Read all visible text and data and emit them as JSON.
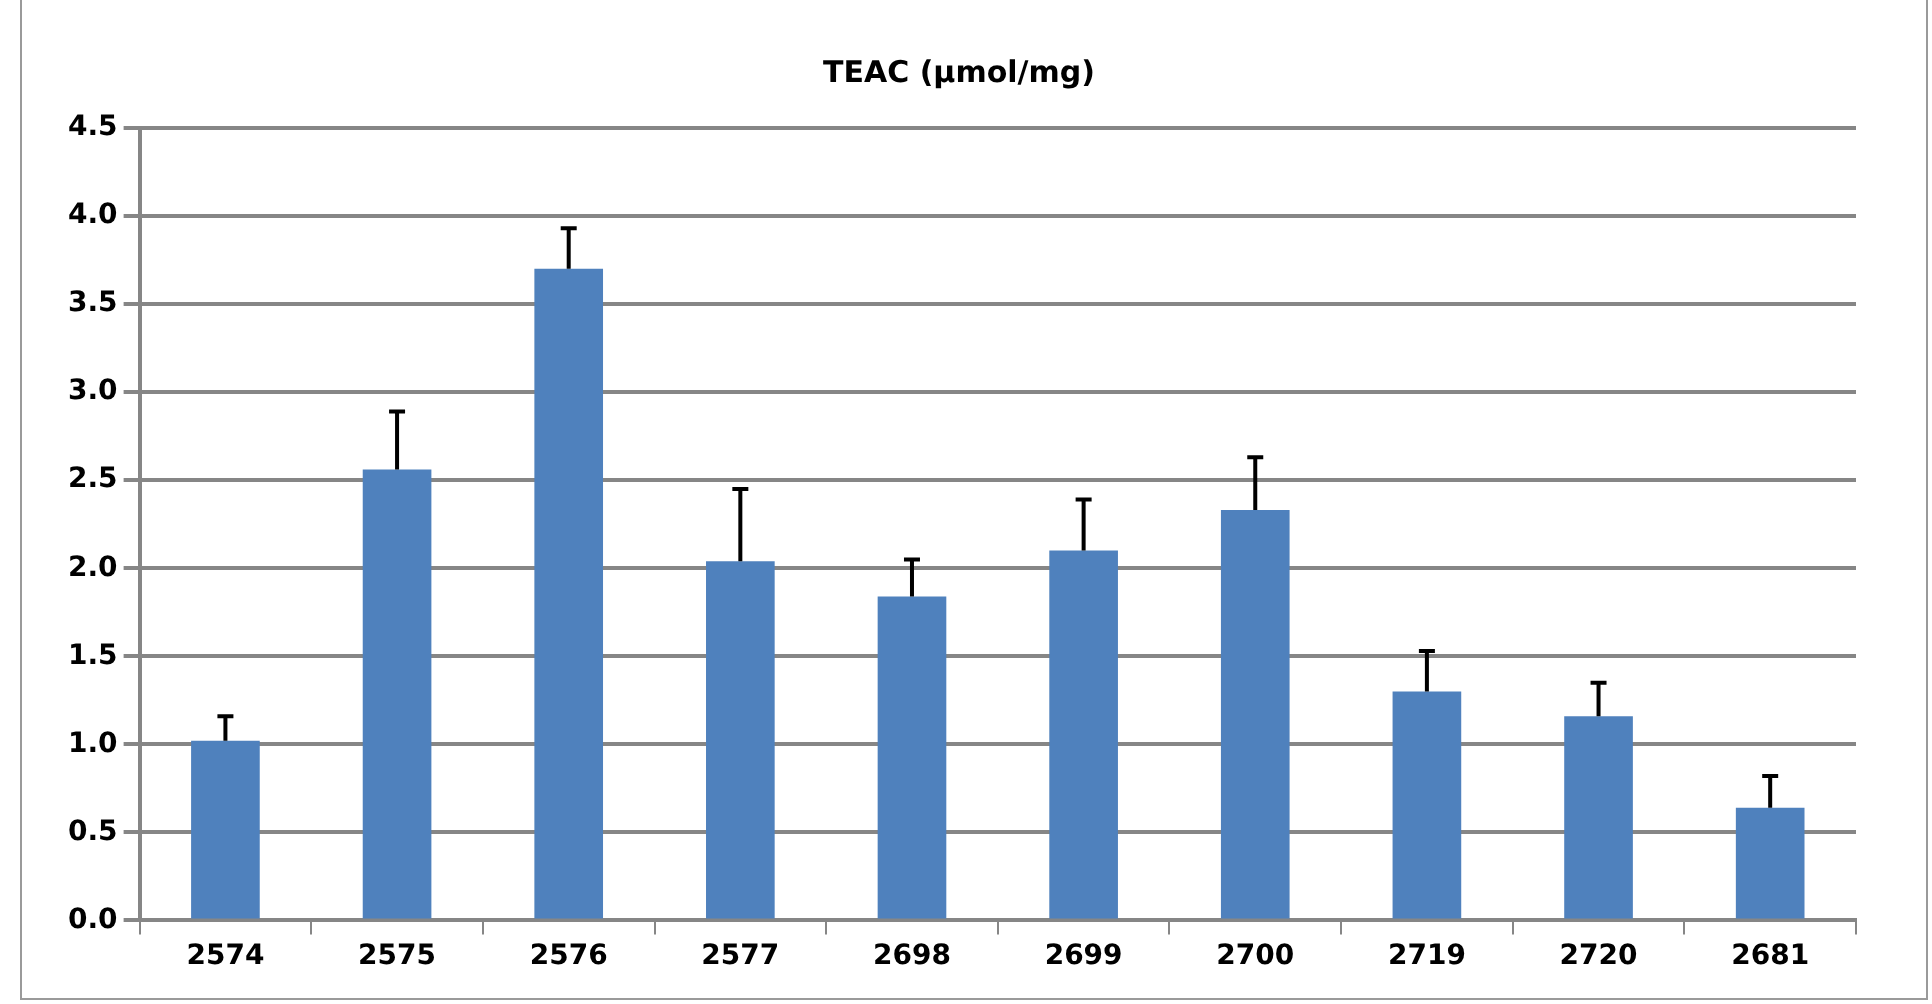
{
  "chart_data": {
    "type": "bar",
    "title": "TEAC (µmol/mg)",
    "categories": [
      "2574",
      "2575",
      "2576",
      "2577",
      "2698",
      "2699",
      "2700",
      "2719",
      "2720",
      "2681"
    ],
    "values": [
      1.02,
      2.56,
      3.7,
      2.04,
      1.84,
      2.1,
      2.33,
      1.3,
      1.16,
      0.64
    ],
    "errors": [
      [
        1.02,
        1.16
      ],
      [
        2.56,
        2.89
      ],
      [
        3.7,
        3.93
      ],
      [
        2.04,
        2.45
      ],
      [
        1.84,
        2.05
      ],
      [
        2.1,
        2.39
      ],
      [
        2.33,
        2.63
      ],
      [
        1.3,
        1.53
      ],
      [
        1.16,
        1.35
      ],
      [
        0.64,
        0.82
      ]
    ],
    "color": "#4f81bd",
    "ylim": [
      0,
      4.5
    ],
    "yticks": [
      {
        "value": 0,
        "label": "0.0"
      },
      0.5,
      {
        "value": 1,
        "label": "1.0"
      },
      1.5,
      {
        "value": 2,
        "label": "2.0"
      },
      2.5,
      {
        "value": 3,
        "label": "3.0"
      },
      3.5,
      {
        "value": 4,
        "label": "4.0"
      },
      4.5
    ],
    "grid": "y"
  }
}
